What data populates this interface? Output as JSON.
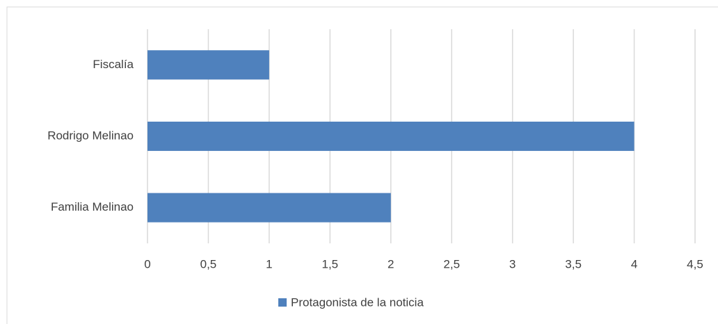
{
  "chart_data": {
    "type": "hbar",
    "categories": [
      "Fiscalía",
      "Rodrigo Melinao",
      "Familia Melinao"
    ],
    "series": [
      {
        "name": "Protagonista de la noticia",
        "color": "#4f81bd",
        "values": [
          1,
          4,
          2
        ]
      }
    ],
    "xlim": [
      0,
      4.5
    ],
    "xticks": [
      0,
      {
        "value": 0.5,
        "label": "0,5"
      },
      1,
      {
        "value": 1.5,
        "label": "1,5"
      },
      2,
      {
        "value": 2.5,
        "label": "2,5"
      },
      3,
      {
        "value": 3.5,
        "label": "3,5"
      },
      4,
      {
        "value": 4.5,
        "label": "4,5"
      }
    ],
    "grid": true,
    "legend": "bottom"
  }
}
